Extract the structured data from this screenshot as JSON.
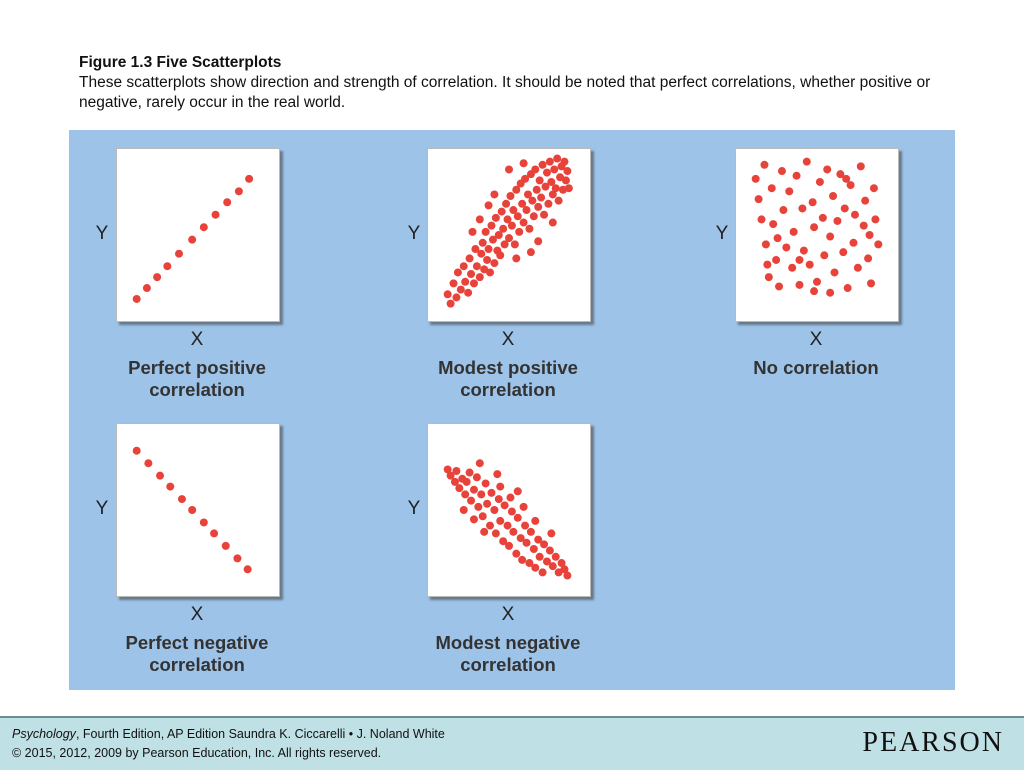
{
  "caption": {
    "title": "Figure 1.3 Five Scatterplots",
    "text": "These scatterplots show direction and strength of correlation. It should be noted that perfect correlations, whether positive or negative, rarely occur in the real world."
  },
  "colors": {
    "panel": "#9dc3e8",
    "dot": "#e8433a",
    "footer": "#bfe1e5"
  },
  "chart_data": [
    {
      "type": "scatter",
      "xlabel": "X",
      "ylabel": "Y",
      "title": "Perfect positive correlation",
      "xlim": [
        0,
        10
      ],
      "ylim": [
        0,
        10
      ],
      "points": [
        [
          0.8,
          0.9
        ],
        [
          1.5,
          1.6
        ],
        [
          2.2,
          2.3
        ],
        [
          2.9,
          3.0
        ],
        [
          3.7,
          3.8
        ],
        [
          4.6,
          4.7
        ],
        [
          5.4,
          5.5
        ],
        [
          6.2,
          6.3
        ],
        [
          7.0,
          7.1
        ],
        [
          7.8,
          7.8
        ],
        [
          8.5,
          8.6
        ]
      ]
    },
    {
      "type": "scatter",
      "xlabel": "X",
      "ylabel": "Y",
      "title": "Modest positive correlation",
      "xlim": [
        0,
        10
      ],
      "ylim": [
        0,
        10
      ],
      "points": [
        [
          0.8,
          1.2
        ],
        [
          1.0,
          0.6
        ],
        [
          1.2,
          1.9
        ],
        [
          1.4,
          1.0
        ],
        [
          1.5,
          2.6
        ],
        [
          1.7,
          1.5
        ],
        [
          1.9,
          3.0
        ],
        [
          2.0,
          2.0
        ],
        [
          2.2,
          1.3
        ],
        [
          2.3,
          3.5
        ],
        [
          2.4,
          2.5
        ],
        [
          2.6,
          1.9
        ],
        [
          2.7,
          4.1
        ],
        [
          2.8,
          3.0
        ],
        [
          3.0,
          2.3
        ],
        [
          3.1,
          3.8
        ],
        [
          3.2,
          4.5
        ],
        [
          3.3,
          2.8
        ],
        [
          3.4,
          5.2
        ],
        [
          3.5,
          3.4
        ],
        [
          3.6,
          4.1
        ],
        [
          3.7,
          2.6
        ],
        [
          3.8,
          5.6
        ],
        [
          3.9,
          4.7
        ],
        [
          4.0,
          3.2
        ],
        [
          4.1,
          6.1
        ],
        [
          4.2,
          4.0
        ],
        [
          4.3,
          5.0
        ],
        [
          4.4,
          3.7
        ],
        [
          4.5,
          6.5
        ],
        [
          4.6,
          5.4
        ],
        [
          4.7,
          4.4
        ],
        [
          4.8,
          7.0
        ],
        [
          4.9,
          6.0
        ],
        [
          5.0,
          4.8
        ],
        [
          5.1,
          7.5
        ],
        [
          5.2,
          5.6
        ],
        [
          5.3,
          6.6
        ],
        [
          5.4,
          4.4
        ],
        [
          5.5,
          7.9
        ],
        [
          5.6,
          6.2
        ],
        [
          5.7,
          5.2
        ],
        [
          5.8,
          8.3
        ],
        [
          5.9,
          7.0
        ],
        [
          6.0,
          5.8
        ],
        [
          6.1,
          8.6
        ],
        [
          6.2,
          6.6
        ],
        [
          6.3,
          7.6
        ],
        [
          6.4,
          5.4
        ],
        [
          6.5,
          8.9
        ],
        [
          6.6,
          7.2
        ],
        [
          6.7,
          6.2
        ],
        [
          6.8,
          9.2
        ],
        [
          6.9,
          7.9
        ],
        [
          7.0,
          6.8
        ],
        [
          7.1,
          8.5
        ],
        [
          7.2,
          7.4
        ],
        [
          7.3,
          9.5
        ],
        [
          7.4,
          6.3
        ],
        [
          7.5,
          8.1
        ],
        [
          7.6,
          9.0
        ],
        [
          7.7,
          7.0
        ],
        [
          7.8,
          9.7
        ],
        [
          7.9,
          8.4
        ],
        [
          8.0,
          7.6
        ],
        [
          8.1,
          9.2
        ],
        [
          8.2,
          8.0
        ],
        [
          8.3,
          9.9
        ],
        [
          8.4,
          7.2
        ],
        [
          8.5,
          8.7
        ],
        [
          8.6,
          9.4
        ],
        [
          8.7,
          7.9
        ],
        [
          8.8,
          9.7
        ],
        [
          8.9,
          8.5
        ],
        [
          9.0,
          9.1
        ],
        [
          9.1,
          8.0
        ],
        [
          3.6,
          6.9
        ],
        [
          4.0,
          7.6
        ],
        [
          5.0,
          9.2
        ],
        [
          6.0,
          9.6
        ],
        [
          2.5,
          5.2
        ],
        [
          3.0,
          6.0
        ],
        [
          6.5,
          3.9
        ],
        [
          7.0,
          4.6
        ],
        [
          5.5,
          3.5
        ],
        [
          8.0,
          5.8
        ]
      ]
    },
    {
      "type": "scatter",
      "xlabel": "X",
      "ylabel": "Y",
      "title": "No correlation",
      "xlim": [
        0,
        10
      ],
      "ylim": [
        0,
        10
      ],
      "points": [
        [
          0.8,
          8.6
        ],
        [
          1.0,
          7.3
        ],
        [
          1.2,
          6.0
        ],
        [
          1.4,
          9.5
        ],
        [
          1.5,
          4.4
        ],
        [
          1.7,
          2.3
        ],
        [
          1.9,
          8.0
        ],
        [
          2.0,
          5.7
        ],
        [
          2.2,
          3.4
        ],
        [
          2.4,
          1.7
        ],
        [
          2.6,
          9.1
        ],
        [
          2.7,
          6.6
        ],
        [
          2.9,
          4.2
        ],
        [
          3.1,
          7.8
        ],
        [
          3.3,
          2.9
        ],
        [
          3.4,
          5.2
        ],
        [
          3.6,
          8.8
        ],
        [
          3.8,
          1.8
        ],
        [
          4.0,
          6.7
        ],
        [
          4.1,
          4.0
        ],
        [
          4.3,
          9.7
        ],
        [
          4.5,
          3.1
        ],
        [
          4.7,
          7.1
        ],
        [
          4.8,
          5.5
        ],
        [
          5.0,
          2.0
        ],
        [
          5.2,
          8.4
        ],
        [
          5.4,
          6.1
        ],
        [
          5.5,
          3.7
        ],
        [
          5.7,
          9.2
        ],
        [
          5.9,
          4.9
        ],
        [
          6.1,
          7.5
        ],
        [
          6.2,
          2.6
        ],
        [
          6.4,
          5.9
        ],
        [
          6.6,
          8.9
        ],
        [
          6.8,
          3.9
        ],
        [
          6.9,
          6.7
        ],
        [
          7.1,
          1.6
        ],
        [
          7.3,
          8.2
        ],
        [
          7.5,
          4.5
        ],
        [
          7.6,
          6.3
        ],
        [
          7.8,
          2.9
        ],
        [
          8.0,
          9.4
        ],
        [
          8.2,
          5.6
        ],
        [
          8.3,
          7.2
        ],
        [
          8.5,
          3.5
        ],
        [
          8.7,
          1.9
        ],
        [
          8.9,
          8.0
        ],
        [
          9.0,
          6.0
        ],
        [
          9.2,
          4.4
        ],
        [
          2.3,
          4.8
        ],
        [
          3.8,
          3.4
        ],
        [
          5.9,
          1.3
        ],
        [
          7.0,
          8.6
        ],
        [
          8.6,
          5.0
        ],
        [
          1.6,
          3.1
        ],
        [
          4.8,
          1.4
        ]
      ]
    },
    {
      "type": "scatter",
      "xlabel": "X",
      "ylabel": "Y",
      "title": "Perfect negative correlation",
      "xlim": [
        0,
        10
      ],
      "ylim": [
        0,
        10
      ],
      "points": [
        [
          0.8,
          8.8
        ],
        [
          1.6,
          8.0
        ],
        [
          2.4,
          7.2
        ],
        [
          3.1,
          6.5
        ],
        [
          3.9,
          5.7
        ],
        [
          4.6,
          5.0
        ],
        [
          5.4,
          4.2
        ],
        [
          6.1,
          3.5
        ],
        [
          6.9,
          2.7
        ],
        [
          7.7,
          1.9
        ],
        [
          8.4,
          1.2
        ]
      ]
    },
    {
      "type": "scatter",
      "xlabel": "X",
      "ylabel": "Y",
      "title": "Modest negative correlation",
      "xlim": [
        0,
        10
      ],
      "ylim": [
        0,
        10
      ],
      "points": [
        [
          0.8,
          7.6
        ],
        [
          1.0,
          7.2
        ],
        [
          1.3,
          6.8
        ],
        [
          1.4,
          7.5
        ],
        [
          1.6,
          6.4
        ],
        [
          1.8,
          7.0
        ],
        [
          2.0,
          6.0
        ],
        [
          2.1,
          6.8
        ],
        [
          2.3,
          7.4
        ],
        [
          2.4,
          5.6
        ],
        [
          2.6,
          6.3
        ],
        [
          2.8,
          7.1
        ],
        [
          2.9,
          5.2
        ],
        [
          3.1,
          6.0
        ],
        [
          3.2,
          4.6
        ],
        [
          3.4,
          6.7
        ],
        [
          3.5,
          5.4
        ],
        [
          3.7,
          4.0
        ],
        [
          3.8,
          6.1
        ],
        [
          4.0,
          5.0
        ],
        [
          4.1,
          3.5
        ],
        [
          4.3,
          5.7
        ],
        [
          4.4,
          4.3
        ],
        [
          4.6,
          3.0
        ],
        [
          4.7,
          5.3
        ],
        [
          4.9,
          4.0
        ],
        [
          5.0,
          2.7
        ],
        [
          5.2,
          4.9
        ],
        [
          5.3,
          3.6
        ],
        [
          5.5,
          2.2
        ],
        [
          5.6,
          4.5
        ],
        [
          5.8,
          3.2
        ],
        [
          5.9,
          1.8
        ],
        [
          6.1,
          4.0
        ],
        [
          6.2,
          2.9
        ],
        [
          6.4,
          1.6
        ],
        [
          6.5,
          3.6
        ],
        [
          6.7,
          2.5
        ],
        [
          6.8,
          1.3
        ],
        [
          7.0,
          3.1
        ],
        [
          7.1,
          2.0
        ],
        [
          7.3,
          1.0
        ],
        [
          7.4,
          2.8
        ],
        [
          7.6,
          1.7
        ],
        [
          7.8,
          2.4
        ],
        [
          8.0,
          1.4
        ],
        [
          8.2,
          2.0
        ],
        [
          8.4,
          1.0
        ],
        [
          8.6,
          1.6
        ],
        [
          8.8,
          1.2
        ],
        [
          9.0,
          0.8
        ],
        [
          1.9,
          5.0
        ],
        [
          2.6,
          4.4
        ],
        [
          3.3,
          3.6
        ],
        [
          4.4,
          6.5
        ],
        [
          5.1,
          5.8
        ],
        [
          6.0,
          5.2
        ],
        [
          6.8,
          4.3
        ],
        [
          3.0,
          8.0
        ],
        [
          4.2,
          7.3
        ],
        [
          5.6,
          6.2
        ],
        [
          7.9,
          3.5
        ]
      ]
    }
  ],
  "footer": {
    "book": "Psychology",
    "book_rest": ", Fourth Edition, AP Edition Saundra K. Ciccarelli • J. Noland White",
    "copyright": "© 2015, 2012, 2009 by Pearson Education, Inc. All rights reserved.",
    "brand": "PEARSON"
  }
}
